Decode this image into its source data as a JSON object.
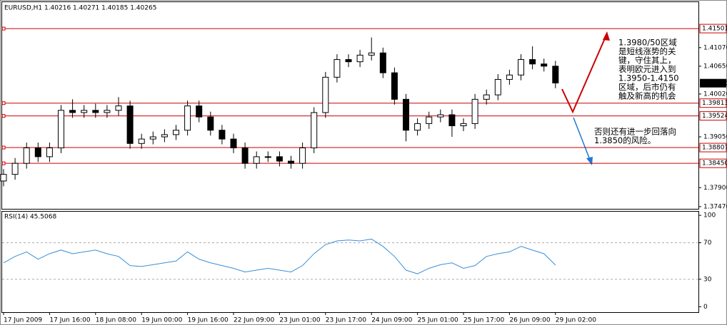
{
  "chart_data": [
    {
      "type": "candlestick",
      "title": "EURUSD,H1  1.40216 1.40271 1.40185 1.40265",
      "categories": [
        "17 Jun 2009",
        null,
        null,
        null,
        "17 Jun 16:00",
        null,
        null,
        null,
        "18 Jun 08:00",
        null,
        null,
        null,
        "19 Jun 00:00",
        null,
        null,
        null,
        "19 Jun 16:00",
        null,
        null,
        null,
        "22 Jun 09:00",
        null,
        null,
        null,
        "23 Jun 01:00",
        null,
        null,
        null,
        "23 Jun 17:00",
        null,
        null,
        null,
        "24 Jun 09:00",
        null,
        null,
        null,
        "25 Jun 01:00",
        null,
        null,
        null,
        "25 Jun 17:00",
        null,
        null,
        null,
        "26 Jun 09:00",
        null,
        null,
        null,
        "29 Jun 02:00"
      ],
      "open": [
        1.3805,
        1.382,
        1.3845,
        1.388,
        1.386,
        1.388,
        1.3965,
        1.396,
        1.3965,
        1.396,
        1.3965,
        1.3975,
        1.389,
        1.39,
        1.3905,
        1.391,
        1.392,
        1.3975,
        1.395,
        1.392,
        1.39,
        1.388,
        1.3845,
        1.386,
        1.386,
        1.385,
        1.3845,
        1.388,
        1.396,
        1.404,
        1.408,
        1.4075,
        1.409,
        1.4095,
        1.405,
        1.399,
        1.392,
        1.3935,
        1.395,
        1.3955,
        1.393,
        1.3935,
        1.399,
        1.4,
        1.4035,
        1.4045,
        1.408,
        1.407,
        1.4065
      ],
      "high": [
        1.3832,
        1.3857,
        1.3892,
        1.3892,
        1.3892,
        1.3977,
        1.399,
        1.3977,
        1.398,
        1.3977,
        1.3995,
        1.3987,
        1.3912,
        1.3917,
        1.3922,
        1.3932,
        1.3987,
        1.3987,
        1.3962,
        1.3932,
        1.3912,
        1.3892,
        1.3872,
        1.3872,
        1.3872,
        1.3862,
        1.3892,
        1.3972,
        1.4052,
        1.4092,
        1.4092,
        1.4102,
        1.413,
        1.4107,
        1.4062,
        1.4002,
        1.3947,
        1.3962,
        1.3967,
        1.3967,
        1.3947,
        1.4002,
        1.4012,
        1.4047,
        1.4057,
        1.4092,
        1.411,
        1.4082,
        1.4077
      ],
      "low": [
        1.3793,
        1.3808,
        1.3833,
        1.3848,
        1.3848,
        1.3868,
        1.3948,
        1.3948,
        1.3948,
        1.3948,
        1.3953,
        1.3878,
        1.3878,
        1.3888,
        1.3893,
        1.3898,
        1.3908,
        1.3938,
        1.3908,
        1.3888,
        1.3868,
        1.3833,
        1.3833,
        1.3848,
        1.3838,
        1.3833,
        1.3833,
        1.3868,
        1.3948,
        1.4028,
        1.4063,
        1.4063,
        1.4078,
        1.4038,
        1.3978,
        1.3895,
        1.3908,
        1.3923,
        1.3938,
        1.3905,
        1.3918,
        1.3923,
        1.3978,
        1.3988,
        1.4023,
        1.4033,
        1.4058,
        1.4053,
        1.4015
      ],
      "close": [
        1.382,
        1.3845,
        1.388,
        1.386,
        1.388,
        1.3965,
        1.396,
        1.3965,
        1.396,
        1.3965,
        1.3975,
        1.389,
        1.39,
        1.3905,
        1.391,
        1.392,
        1.3975,
        1.395,
        1.392,
        1.39,
        1.388,
        1.3845,
        1.386,
        1.386,
        1.385,
        1.3845,
        1.388,
        1.396,
        1.404,
        1.408,
        1.4075,
        1.409,
        1.4095,
        1.405,
        1.399,
        1.392,
        1.3935,
        1.395,
        1.3955,
        1.393,
        1.3935,
        1.399,
        1.4,
        1.4035,
        1.4045,
        1.408,
        1.407,
        1.4065,
        1.4027
      ],
      "ylim": [
        1.3742,
        1.421
      ],
      "yticks": [
        {
          "value": 1.4107,
          "label": "1.41070"
        },
        {
          "value": 1.4065,
          "label": "1.40650"
        },
        {
          "value": 1.4002,
          "label": "1.40020"
        },
        {
          "value": 1.3905,
          "label": "1.39050"
        },
        {
          "value": 1.379,
          "label": "1.37900"
        },
        {
          "value": 1.3747,
          "label": "1.37470"
        }
      ],
      "levels": [
        1.41501,
        1.39813,
        1.39524,
        1.38807,
        {
          "value": 1.3845,
          "label": "1.38450"
        }
      ],
      "level_color": "#cc0000",
      "last_price": 1.40265,
      "annotations": [
        {
          "color": "#cc0000",
          "lines": [
            "1.3980/50区域",
            "是短线涨势的关",
            "键，守住其上，",
            "表明欧元进入到",
            "1.3950-1.4150",
            "区域，后市仍有",
            "触及新高的机会"
          ]
        },
        {
          "color": "#1e78d2",
          "lines": [
            "否则还有进一步回落向",
            "1.3850的风险。"
          ]
        }
      ]
    },
    {
      "type": "line",
      "title": "RSI(14) 45.5068",
      "color": "#3a8fd8",
      "values": [
        48,
        55,
        60,
        52,
        58,
        62,
        58,
        60,
        62,
        58,
        55,
        45,
        44,
        46,
        48,
        50,
        60,
        52,
        48,
        45,
        42,
        38,
        40,
        42,
        40,
        38,
        45,
        58,
        68,
        72,
        73,
        72,
        74,
        66,
        55,
        40,
        36,
        42,
        46,
        48,
        42,
        45,
        55,
        58,
        60,
        66,
        62,
        58,
        45.5068
      ],
      "ylim": [
        -6,
        104
      ],
      "yticks": [
        100,
        70,
        30,
        0
      ],
      "levels": [
        70,
        30
      ]
    }
  ]
}
